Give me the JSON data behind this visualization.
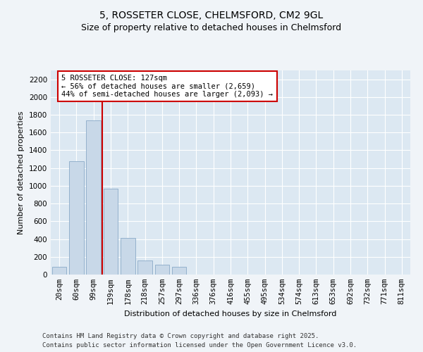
{
  "title_line1": "5, ROSSETER CLOSE, CHELMSFORD, CM2 9GL",
  "title_line2": "Size of property relative to detached houses in Chelmsford",
  "xlabel": "Distribution of detached houses by size in Chelmsford",
  "ylabel": "Number of detached properties",
  "categories": [
    "20sqm",
    "60sqm",
    "99sqm",
    "139sqm",
    "178sqm",
    "218sqm",
    "257sqm",
    "297sqm",
    "336sqm",
    "376sqm",
    "416sqm",
    "455sqm",
    "495sqm",
    "534sqm",
    "574sqm",
    "613sqm",
    "653sqm",
    "692sqm",
    "732sqm",
    "771sqm",
    "811sqm"
  ],
  "values": [
    90,
    1280,
    1740,
    970,
    410,
    160,
    115,
    90,
    0,
    0,
    0,
    0,
    0,
    0,
    0,
    0,
    0,
    0,
    0,
    0,
    0
  ],
  "bar_color": "#c8d8e8",
  "bar_edge_color": "#8aaac8",
  "vline_color": "#cc0000",
  "vline_xindex": 2.5,
  "annotation_text": "5 ROSSETER CLOSE: 127sqm\n← 56% of detached houses are smaller (2,659)\n44% of semi-detached houses are larger (2,093) →",
  "annotation_box_color": "#cc0000",
  "ylim_max": 2300,
  "yticks": [
    0,
    200,
    400,
    600,
    800,
    1000,
    1200,
    1400,
    1600,
    1800,
    2000,
    2200
  ],
  "plot_bg_color": "#dce8f2",
  "fig_bg_color": "#f0f4f8",
  "grid_color": "#ffffff",
  "footer_line1": "Contains HM Land Registry data © Crown copyright and database right 2025.",
  "footer_line2": "Contains public sector information licensed under the Open Government Licence v3.0.",
  "title_fontsize": 10,
  "subtitle_fontsize": 9,
  "axis_label_fontsize": 8,
  "tick_fontsize": 7.5,
  "annotation_fontsize": 7.5,
  "footer_fontsize": 6.5
}
